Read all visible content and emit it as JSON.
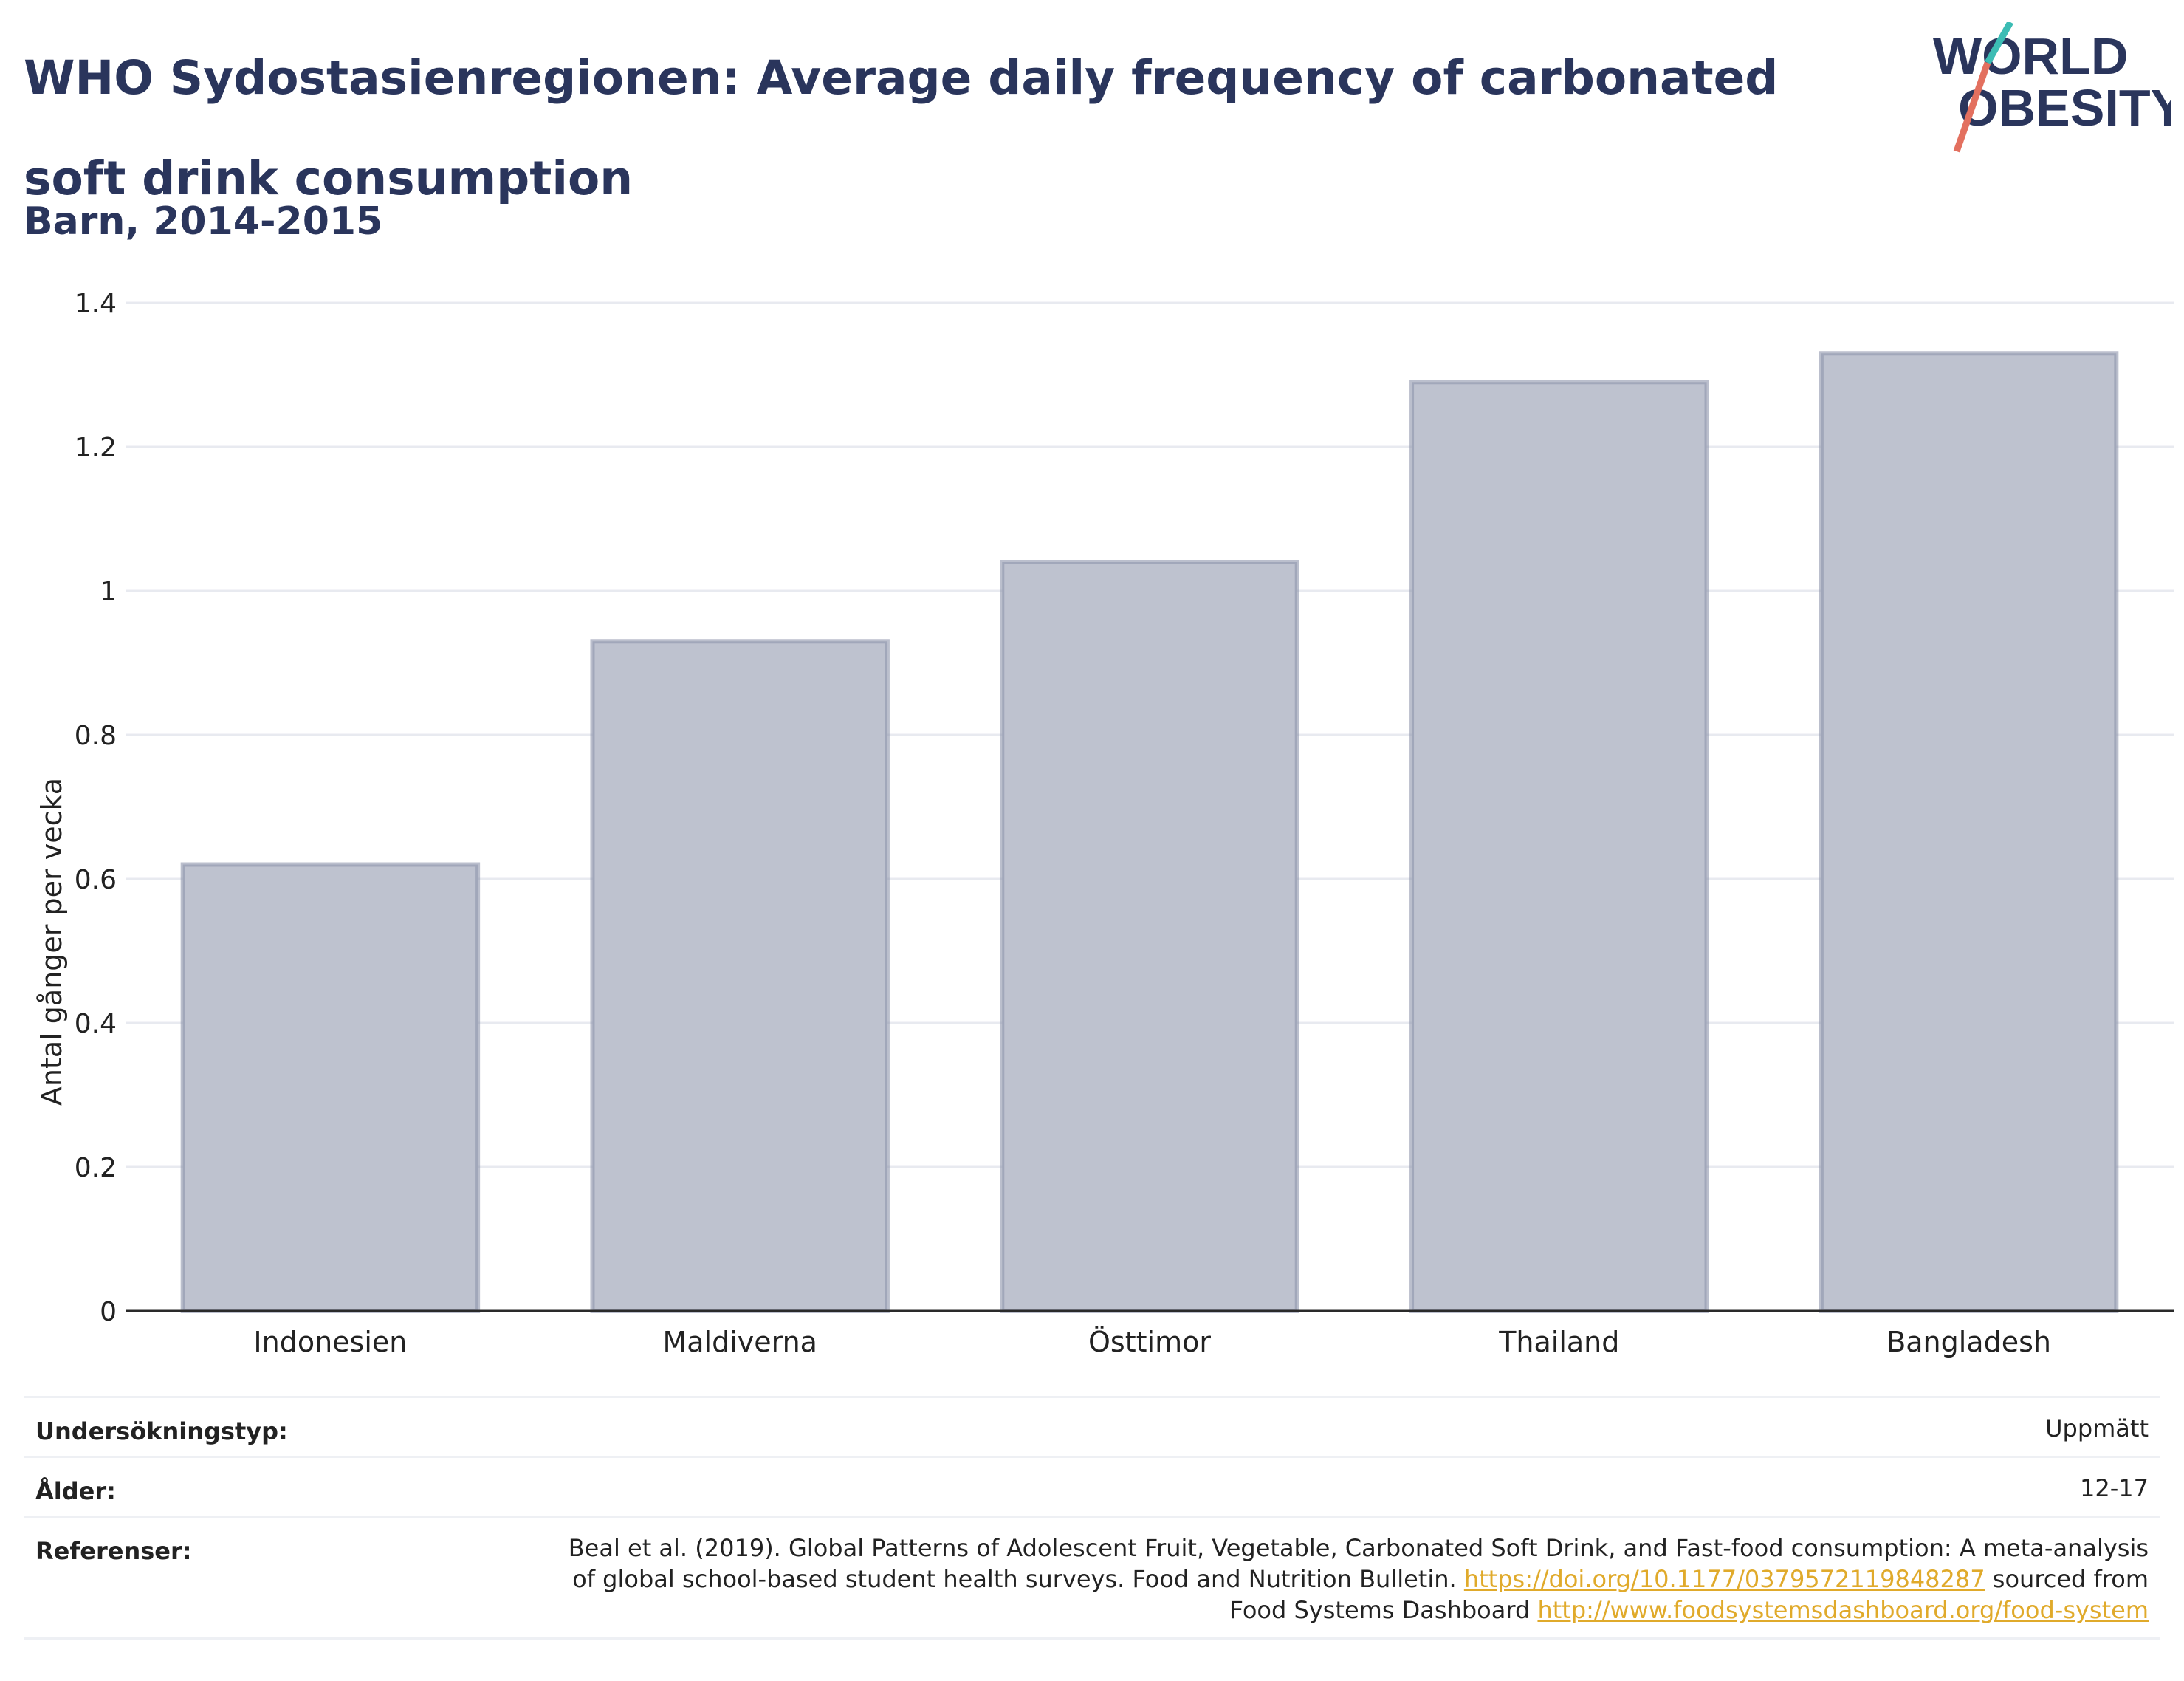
{
  "header": {
    "title": "WHO Sydostasienregionen: Average daily frequency of carbonated soft drink consumption",
    "subtitle": "Barn, 2014-2015"
  },
  "logo": {
    "line1": "WORLD",
    "line2": "OBESITY"
  },
  "chart_data": {
    "type": "bar",
    "categories": [
      "Indonesien",
      "Maldiverna",
      "Östtimor",
      "Thailand",
      "Bangladesh"
    ],
    "values": [
      0.62,
      0.93,
      1.04,
      1.29,
      1.33
    ],
    "ylabel": "Antal gånger per vecka",
    "ylim": [
      0,
      1.4
    ],
    "yticks": [
      "0",
      "0.2",
      "0.4",
      "0.6",
      "0.8",
      "1",
      "1.2",
      "1.4"
    ],
    "grid": true,
    "bar_color": "#bec2cf",
    "bar_edge_color": "#8e94ab"
  },
  "table": {
    "survey_type_label": "Undersökningstyp:",
    "survey_type_value": "Uppmätt",
    "age_label": "Ålder:",
    "age_value": "12-17",
    "references_label": "Referenser:",
    "references_text": "Beal et al. (2019). Global Patterns of Adolescent Fruit, Vegetable, Carbonated Soft Drink, and Fast-food consumption: A meta-analysis of global school-based student health surveys. Food and Nutrition Bulletin.",
    "references_link1": "https://doi.org/10.1177/0379572119848287",
    "references_mid": "sourced from Food Systems Dashboard",
    "references_link2": "http://www.foodsystemsdashboard.org/food-system"
  },
  "colors": {
    "title": "#2a355c",
    "link": "#e0aa2b",
    "logo_teal": "#3cbcb4",
    "logo_red": "#e3705f"
  }
}
